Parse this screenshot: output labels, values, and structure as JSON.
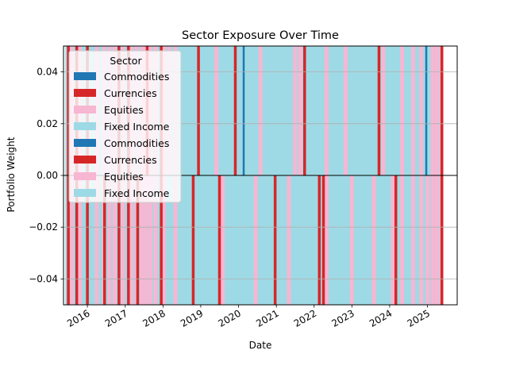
{
  "chart_data": {
    "type": "bar",
    "title": "Sector Exposure Over Time",
    "xlabel": "Date",
    "ylabel": "Portfolio Weight",
    "xlim": [
      "2015-05-15",
      "2025-10-15"
    ],
    "ylim": [
      -0.05,
      0.05
    ],
    "grid": "y",
    "legend_placement": "upper-left",
    "legend": {
      "title": "Sector",
      "entries": [
        {
          "label": "Commodities",
          "color": "#1f77b4"
        },
        {
          "label": "Currencies",
          "color": "#d62728"
        },
        {
          "label": "Equities",
          "color": "#f7b6d2"
        },
        {
          "label": "Fixed Income",
          "color": "#9edae5"
        },
        {
          "label": "Commodities",
          "color": "#1f77b4"
        },
        {
          "label": "Currencies",
          "color": "#d62728"
        },
        {
          "label": "Equities",
          "color": "#f7b6d2"
        },
        {
          "label": "Fixed Income",
          "color": "#9edae5"
        }
      ]
    },
    "x_ticks": [
      "2016",
      "2017",
      "2018",
      "2019",
      "2020",
      "2021",
      "2022",
      "2023",
      "2024",
      "2025"
    ],
    "y_ticks": [
      "−0.04",
      "−0.02",
      "0.00",
      "0.02",
      "0.04"
    ],
    "y_tick_values": [
      -0.04,
      -0.02,
      0.0,
      0.02,
      0.04
    ],
    "series": [
      {
        "name": "Fixed Income",
        "color": "#9edae5",
        "periods": [
          {
            "start": "2015-06-01",
            "end": "2025-06-01",
            "positive": 0.05,
            "negative": -0.05
          }
        ]
      },
      {
        "name": "Equities",
        "color": "#f7b6d2",
        "marks": [
          {
            "date": "2015-08-01",
            "sign": "both"
          },
          {
            "date": "2015-10-20",
            "sign": "both"
          },
          {
            "date": "2016-04-01",
            "sign": "both"
          },
          {
            "date": "2016-06-10",
            "sign": "both"
          },
          {
            "date": "2016-08-01",
            "sign": "both"
          },
          {
            "date": "2016-09-20",
            "sign": "both"
          },
          {
            "date": "2016-12-10",
            "sign": "both"
          },
          {
            "date": "2017-03-01",
            "sign": "both"
          },
          {
            "date": "2017-04-20",
            "sign": "both"
          },
          {
            "date": "2017-06-10",
            "sign": "both"
          },
          {
            "date": "2017-07-20",
            "sign": "both"
          },
          {
            "date": "2017-09-01",
            "sign": "both"
          },
          {
            "date": "2017-10-20",
            "sign": "both"
          },
          {
            "date": "2018-01-10",
            "sign": "both"
          },
          {
            "date": "2018-03-01",
            "sign": "positive"
          },
          {
            "date": "2018-05-01",
            "sign": "both"
          },
          {
            "date": "2019-06-01",
            "sign": "positive"
          },
          {
            "date": "2019-08-01",
            "sign": "negative"
          },
          {
            "date": "2020-06-15",
            "sign": "negative"
          },
          {
            "date": "2020-08-01",
            "sign": "positive"
          },
          {
            "date": "2021-05-01",
            "sign": "negative"
          },
          {
            "date": "2021-07-01",
            "sign": "positive"
          },
          {
            "date": "2021-08-20",
            "sign": "positive"
          },
          {
            "date": "2022-05-01",
            "sign": "both"
          },
          {
            "date": "2022-11-01",
            "sign": "positive"
          },
          {
            "date": "2023-01-01",
            "sign": "negative"
          },
          {
            "date": "2023-08-01",
            "sign": "negative"
          },
          {
            "date": "2023-11-01",
            "sign": "positive"
          },
          {
            "date": "2024-02-01",
            "sign": "negative"
          },
          {
            "date": "2024-05-01",
            "sign": "both"
          },
          {
            "date": "2024-08-15",
            "sign": "both"
          },
          {
            "date": "2024-11-01",
            "sign": "both"
          },
          {
            "date": "2025-01-01",
            "sign": "negative"
          },
          {
            "date": "2025-02-20",
            "sign": "both"
          },
          {
            "date": "2025-04-01",
            "sign": "both"
          },
          {
            "date": "2025-05-15",
            "sign": "both"
          }
        ]
      },
      {
        "name": "Currencies",
        "color": "#d62728",
        "marks": [
          {
            "date": "2015-07-01",
            "sign": "both"
          },
          {
            "date": "2015-09-20",
            "sign": "both"
          },
          {
            "date": "2016-01-01",
            "sign": "both"
          },
          {
            "date": "2016-06-15",
            "sign": "negative"
          },
          {
            "date": "2016-11-01",
            "sign": "both"
          },
          {
            "date": "2017-02-01",
            "sign": "both"
          },
          {
            "date": "2017-05-01",
            "sign": "negative"
          },
          {
            "date": "2017-08-01",
            "sign": "positive"
          },
          {
            "date": "2017-12-15",
            "sign": "both"
          },
          {
            "date": "2018-10-20",
            "sign": "negative"
          },
          {
            "date": "2018-12-10",
            "sign": "positive"
          },
          {
            "date": "2019-07-01",
            "sign": "negative"
          },
          {
            "date": "2019-12-01",
            "sign": "positive"
          },
          {
            "date": "2020-12-20",
            "sign": "negative"
          },
          {
            "date": "2021-10-01",
            "sign": "positive"
          },
          {
            "date": "2022-02-20",
            "sign": "negative"
          },
          {
            "date": "2022-04-01",
            "sign": "negative"
          },
          {
            "date": "2023-09-20",
            "sign": "positive"
          },
          {
            "date": "2024-03-01",
            "sign": "negative"
          },
          {
            "date": "2025-05-20",
            "sign": "both"
          }
        ]
      },
      {
        "name": "Commodities",
        "color": "#1f77b4",
        "marks": [
          {
            "date": "2020-02-20",
            "sign": "positive"
          },
          {
            "date": "2024-12-20",
            "sign": "positive"
          }
        ]
      }
    ]
  }
}
